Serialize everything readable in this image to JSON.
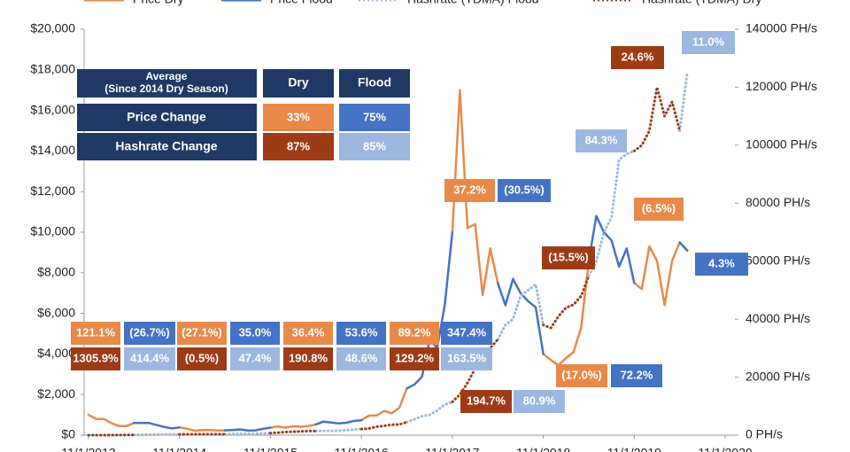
{
  "chart_data": {
    "type": "line",
    "x": [
      "11/1/2013",
      "12/1/2013",
      "1/1/2014",
      "2/1/2014",
      "3/1/2014",
      "4/1/2014",
      "5/1/2014",
      "6/1/2014",
      "7/1/2014",
      "8/1/2014",
      "9/1/2014",
      "10/1/2014",
      "11/1/2014",
      "12/1/2014",
      "1/1/2015",
      "2/1/2015",
      "3/1/2015",
      "4/1/2015",
      "5/1/2015",
      "6/1/2015",
      "7/1/2015",
      "8/1/2015",
      "9/1/2015",
      "10/1/2015",
      "11/1/2015",
      "12/1/2015",
      "1/1/2016",
      "2/1/2016",
      "3/1/2016",
      "4/1/2016",
      "5/1/2016",
      "6/1/2016",
      "7/1/2016",
      "8/1/2016",
      "9/1/2016",
      "10/1/2016",
      "11/1/2016",
      "12/1/2016",
      "1/1/2017",
      "2/1/2017",
      "3/1/2017",
      "4/1/2017",
      "5/1/2017",
      "6/1/2017",
      "7/1/2017",
      "8/1/2017",
      "9/1/2017",
      "10/1/2017",
      "11/1/2017",
      "12/1/2017",
      "1/1/2018",
      "2/1/2018",
      "3/1/2018",
      "4/1/2018",
      "5/1/2018",
      "6/1/2018",
      "7/1/2018",
      "8/1/2018",
      "9/1/2018",
      "10/1/2018",
      "11/1/2018",
      "12/1/2018",
      "1/1/2019",
      "2/1/2019",
      "3/1/2019",
      "4/1/2019",
      "5/1/2019",
      "6/1/2019",
      "7/1/2019",
      "8/1/2019",
      "9/1/2019",
      "10/1/2019",
      "11/1/2019",
      "12/1/2019",
      "1/1/2020",
      "2/1/2020",
      "3/1/2020",
      "4/1/2020",
      "5/1/2020",
      "6/1/2020"
    ],
    "series": [
      {
        "name": "Price Dry",
        "color": "#e8894a",
        "style": "solid",
        "values": [
          1000,
          800,
          800,
          600,
          450,
          450,
          600,
          null,
          null,
          null,
          null,
          null,
          380,
          320,
          220,
          250,
          250,
          230,
          235,
          null,
          null,
          null,
          null,
          null,
          370,
          430,
          370,
          435,
          415,
          450,
          530,
          null,
          null,
          null,
          null,
          null,
          740,
          960,
          970,
          1190,
          1080,
          1350,
          2300,
          null,
          null,
          null,
          null,
          null,
          10000,
          17000,
          10200,
          10400,
          6900,
          9200,
          7500,
          null,
          null,
          null,
          null,
          null,
          4000,
          3700,
          3450,
          3800,
          4100,
          5300,
          8600,
          null,
          null,
          null,
          null,
          null,
          7500,
          7200,
          9300,
          8600,
          6400,
          8600,
          9500,
          null
        ]
      },
      {
        "name": "Price Flood",
        "color": "#4472c4",
        "style": "solid",
        "values": [
          null,
          null,
          null,
          null,
          null,
          null,
          600,
          600,
          600,
          500,
          400,
          330,
          380,
          null,
          null,
          null,
          null,
          null,
          235,
          250,
          285,
          230,
          237,
          310,
          370,
          null,
          null,
          null,
          null,
          null,
          530,
          670,
          620,
          575,
          610,
          700,
          740,
          null,
          null,
          null,
          null,
          null,
          2300,
          2500,
          2870,
          4700,
          4300,
          6400,
          10000,
          null,
          null,
          null,
          null,
          null,
          7500,
          6400,
          7700,
          7000,
          6600,
          6300,
          4000,
          null,
          null,
          null,
          null,
          null,
          8600,
          10800,
          10000,
          9600,
          8300,
          9200,
          7500,
          null,
          null,
          null,
          null,
          null,
          9500,
          9100
        ]
      },
      {
        "name": "Hashrate (TDMA) Flood",
        "color": "#9bb7e0",
        "style": "dotted",
        "axis": "y2",
        "values": [
          null,
          null,
          null,
          null,
          null,
          null,
          85,
          110,
          150,
          200,
          230,
          270,
          290,
          null,
          null,
          null,
          null,
          null,
          370,
          380,
          400,
          440,
          480,
          550,
          700,
          null,
          null,
          null,
          null,
          null,
          1450,
          1500,
          1500,
          1550,
          1700,
          1900,
          2100,
          null,
          null,
          null,
          null,
          null,
          4500,
          5500,
          6500,
          7000,
          8500,
          10500,
          11500,
          null,
          null,
          null,
          null,
          null,
          33000,
          38000,
          40000,
          48000,
          50000,
          52000,
          38000,
          null,
          null,
          null,
          null,
          null,
          55000,
          60000,
          70000,
          75000,
          95000,
          97000,
          98000,
          null,
          null,
          null,
          null,
          null,
          105000,
          125000
        ]
      },
      {
        "name": "Hashrate (TDMA) Dry",
        "color": "#9e3b17",
        "style": "dotted",
        "axis": "y2",
        "values": [
          5,
          8,
          15,
          25,
          40,
          60,
          85,
          null,
          null,
          null,
          null,
          null,
          290,
          310,
          330,
          340,
          350,
          350,
          370,
          null,
          null,
          null,
          null,
          null,
          700,
          850,
          1100,
          1200,
          1300,
          1400,
          1450,
          null,
          null,
          null,
          null,
          null,
          2100,
          2300,
          2900,
          3200,
          3600,
          3700,
          4500,
          null,
          null,
          null,
          null,
          null,
          11500,
          14000,
          18000,
          23000,
          26000,
          30000,
          33000,
          null,
          null,
          null,
          null,
          null,
          38000,
          37000,
          41000,
          44000,
          45000,
          48000,
          55000,
          null,
          null,
          null,
          null,
          null,
          98000,
          100000,
          105000,
          120000,
          110000,
          115000,
          105000,
          null
        ]
      }
    ],
    "xticks": [
      "11/1/2013",
      "11/1/2014",
      "11/1/2015",
      "11/1/2016",
      "11/1/2017",
      "11/1/2018",
      "11/1/2019",
      "11/1/2020"
    ],
    "ylim": [
      0,
      20000
    ],
    "yticks": [
      {
        "value": 0,
        "label": "$0"
      },
      {
        "value": 2000,
        "label": "$2,000"
      },
      {
        "value": 4000,
        "label": "$4,000"
      },
      {
        "value": 6000,
        "label": "$6,000"
      },
      {
        "value": 8000,
        "label": "$8,000"
      },
      {
        "value": 10000,
        "label": "$10,000"
      },
      {
        "value": 12000,
        "label": "$12,000"
      },
      {
        "value": 14000,
        "label": "$14,000"
      },
      {
        "value": 16000,
        "label": "$16,000"
      },
      {
        "value": 18000,
        "label": "$18,000"
      },
      {
        "value": 20000,
        "label": "$20,000"
      }
    ],
    "y2lim": [
      0,
      140000
    ],
    "y2ticks": [
      {
        "value": 0,
        "label": "0 PH/s"
      },
      {
        "value": 20000,
        "label": "20000 PH/s"
      },
      {
        "value": 40000,
        "label": "40000 PH/s"
      },
      {
        "value": 60000,
        "label": "60000 PH/s"
      },
      {
        "value": 80000,
        "label": "80000 PH/s"
      },
      {
        "value": 100000,
        "label": "100000 PH/s"
      },
      {
        "value": 120000,
        "label": "120000 PH/s"
      },
      {
        "value": 140000,
        "label": "140000 PH/s"
      }
    ],
    "legend": "top",
    "annotations": [
      {
        "text": "121.1%",
        "color": "#e8894a"
      },
      {
        "text": "(26.7%)",
        "color": "#4472c4"
      },
      {
        "text": "(27.1%)",
        "color": "#e8894a"
      },
      {
        "text": "35.0%",
        "color": "#4472c4"
      },
      {
        "text": "36.4%",
        "color": "#e8894a"
      },
      {
        "text": "53.6%",
        "color": "#4472c4"
      },
      {
        "text": "89.2%",
        "color": "#e8894a"
      },
      {
        "text": "347.4%",
        "color": "#4472c4"
      },
      {
        "text": "1305.9%",
        "color": "#9e3b17"
      },
      {
        "text": "414.4%",
        "color": "#9bb7e0"
      },
      {
        "text": "(0.5%)",
        "color": "#9e3b17"
      },
      {
        "text": "47.4%",
        "color": "#9bb7e0"
      },
      {
        "text": "190.8%",
        "color": "#9e3b17"
      },
      {
        "text": "48.6%",
        "color": "#9bb7e0"
      },
      {
        "text": "129.2%",
        "color": "#9e3b17"
      },
      {
        "text": "163.5%",
        "color": "#9bb7e0"
      },
      {
        "text": "37.2%",
        "color": "#e8894a"
      },
      {
        "text": "(30.5%)",
        "color": "#4472c4"
      },
      {
        "text": "194.7%",
        "color": "#9e3b17"
      },
      {
        "text": "80.9%",
        "color": "#9bb7e0"
      },
      {
        "text": "(15.5%)",
        "color": "#9e3b17"
      },
      {
        "text": "(17.0%)",
        "color": "#e8894a"
      },
      {
        "text": "72.2%",
        "color": "#4472c4"
      },
      {
        "text": "84.3%",
        "color": "#9bb7e0"
      },
      {
        "text": "24.6%",
        "color": "#9e3b17"
      },
      {
        "text": "(6.5%)",
        "color": "#e8894a"
      },
      {
        "text": "11.0%",
        "color": "#9bb7e0"
      },
      {
        "text": "4.3%",
        "color": "#4472c4"
      }
    ],
    "table": {
      "header_color": "#1f3864",
      "title": "Average",
      "subtitle": "(Since 2014 Dry Season)",
      "columns": [
        "Dry",
        "Flood"
      ],
      "rows": [
        {
          "label": "Price Change",
          "cells": [
            "33%",
            "75%"
          ],
          "colors": [
            "#e8894a",
            "#4472c4"
          ]
        },
        {
          "label": "Hashrate Change",
          "cells": [
            "87%",
            "85%"
          ],
          "colors": [
            "#9e3b17",
            "#9bb7e0"
          ]
        }
      ]
    }
  }
}
